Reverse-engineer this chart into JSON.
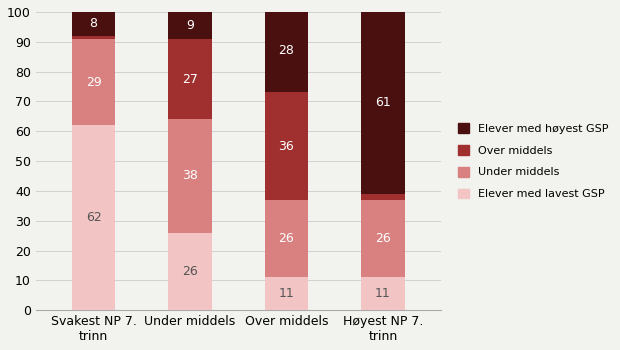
{
  "categories": [
    "Svakest NP 7.\ntrinn",
    "Under middels",
    "Over middels",
    "Høyest NP 7.\ntrinn"
  ],
  "series": {
    "Elever med lavest GSP": [
      62,
      26,
      11,
      11
    ],
    "Under middels": [
      29,
      38,
      26,
      26
    ],
    "Over middels": [
      1,
      27,
      36,
      2
    ],
    "Elever med høyest GSP": [
      8,
      9,
      28,
      61
    ]
  },
  "colors": {
    "Elever med lavest GSP": "#f2c4c4",
    "Under middels": "#d98080",
    "Over middels": "#a03030",
    "Elever med høyest GSP": "#4a0f0f"
  },
  "label_colors": {
    "Elever med lavest GSP": "#555555",
    "Under middels": "#ffffff",
    "Over middels": "#ffffff",
    "Elever med høyest GSP": "#ffffff"
  },
  "ylim": [
    0,
    100
  ],
  "yticks": [
    0,
    10,
    20,
    30,
    40,
    50,
    60,
    70,
    80,
    90,
    100
  ],
  "bar_width": 0.45,
  "legend_order": [
    "Elever med høyest GSP",
    "Over middels",
    "Under middels",
    "Elever med lavest GSP"
  ],
  "background_color": "#f2f2ee",
  "grid_color": "#d0d0d0"
}
